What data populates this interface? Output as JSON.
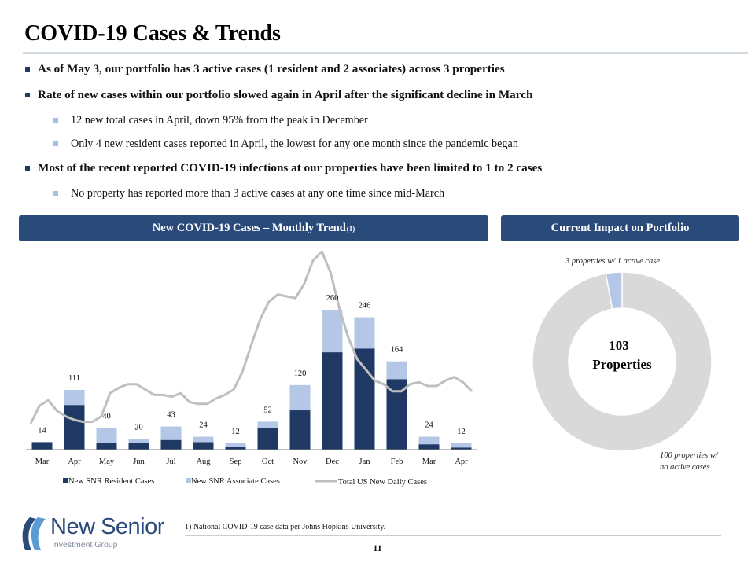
{
  "title": "COVID-19 Cases & Trends",
  "bullets": {
    "b1": "As of May 3, our portfolio has 3 active cases (1 resident and 2 associates) across 3 properties",
    "b2": "Rate of new cases within our portfolio slowed again in April after the significant decline in March",
    "b2_sub1": "12 new total cases in April, down 95% from the peak in December",
    "b2_sub2": "Only 4 new resident cases reported in April, the lowest for any one month since the pandemic began",
    "b3": "Most of the recent reported COVID-19 infections at our properties have been limited to 1 to 2 cases",
    "b3_sub1": "No property has reported more than 3 active cases at any one time since mid-March"
  },
  "panels": {
    "left_title": "New COVID-19 Cases – Monthly Trend",
    "left_sup": "(1)",
    "right_title": "Current Impact on Portfolio"
  },
  "colors": {
    "resident": "#1f3864",
    "associate": "#b4c7e7",
    "line": "#bfbfbf",
    "header_bg": "#2a4a7a",
    "donut_main": "#d9d9d9",
    "donut_active": "#b4c7e7"
  },
  "chart_data": [
    {
      "type": "bar",
      "categories": [
        "Mar",
        "Apr",
        "May",
        "Jun",
        "Jul",
        "Aug",
        "Sep",
        "Oct",
        "Nov",
        "Dec",
        "Jan",
        "Feb",
        "Mar",
        "Apr"
      ],
      "series": [
        {
          "name": "New SNR Resident Cases",
          "values": [
            14,
            83,
            12,
            13,
            18,
            14,
            6,
            40,
            73,
            181,
            188,
            131,
            10,
            4
          ]
        },
        {
          "name": "New SNR Associate Cases",
          "values": [
            0,
            28,
            28,
            7,
            25,
            10,
            6,
            12,
            47,
            79,
            58,
            33,
            14,
            8
          ]
        }
      ],
      "totals": [
        14,
        111,
        40,
        20,
        43,
        24,
        12,
        52,
        120,
        260,
        246,
        164,
        24,
        12
      ],
      "line": {
        "name": "Total US New Daily Cases",
        "values": [
          0.04,
          0.14,
          0.17,
          0.11,
          0.08,
          0.06,
          0.05,
          0.05,
          0.08,
          0.21,
          0.24,
          0.26,
          0.26,
          0.23,
          0.2,
          0.2,
          0.19,
          0.21,
          0.16,
          0.15,
          0.15,
          0.18,
          0.2,
          0.23,
          0.33,
          0.48,
          0.62,
          0.72,
          0.76,
          0.75,
          0.74,
          0.82,
          0.95,
          1.0,
          0.88,
          0.68,
          0.52,
          0.4,
          0.34,
          0.28,
          0.26,
          0.22,
          0.22,
          0.26,
          0.27,
          0.25,
          0.25,
          0.28,
          0.3,
          0.27,
          0.22
        ]
      },
      "legend": [
        "New SNR Resident Cases",
        "New SNR Associate Cases",
        "Total US New Daily Cases"
      ],
      "legend_position": "bottom"
    },
    {
      "type": "pie",
      "style": "donut",
      "slices": [
        {
          "label": "3 properties w/ 1 active case",
          "value": 3
        },
        {
          "label": "100 properties w/ no active cases",
          "value": 100
        }
      ],
      "center_label_line1": "103",
      "center_label_line2": "Properties",
      "label_active": "3 properties w/ 1 active case",
      "label_main_line1": "100 properties w/",
      "label_main_line2": "no active cases"
    }
  ],
  "footnote": "1) National COVID-19 case data per Johns Hopkins University.",
  "page_number": "11",
  "logo": {
    "name": "New Senior",
    "tagline": "Investment Group"
  }
}
